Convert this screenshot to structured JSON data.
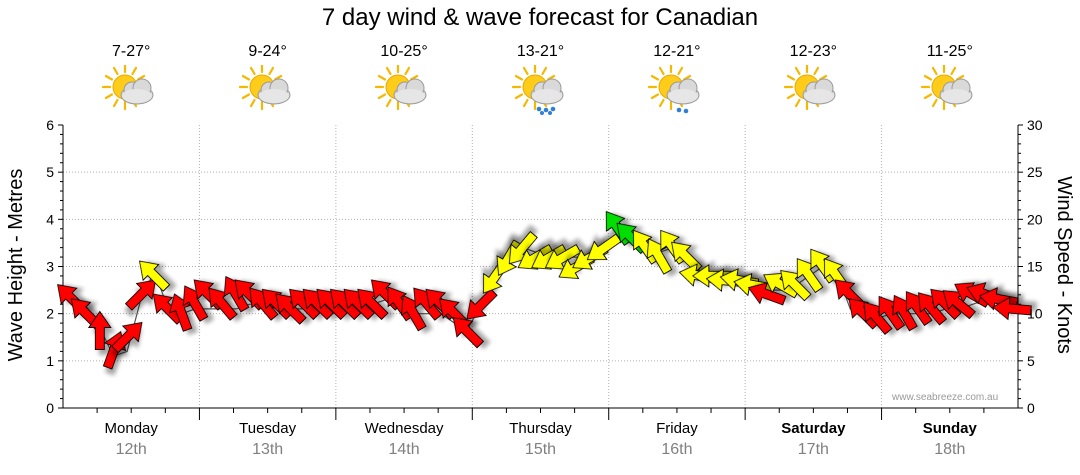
{
  "chart_data": {
    "type": "line",
    "title": "7 day wind & wave forecast for Canadian",
    "ylabel_left": "Wave Height - Metres",
    "ylabel_right": "Wind Speed - Knots",
    "ylim_left": [
      0,
      6
    ],
    "ylim_right": [
      0,
      30
    ],
    "yticks_left": [
      "0",
      "1",
      "2",
      "3",
      "4",
      "5",
      "6"
    ],
    "yticks_right": [
      "0",
      "5",
      "10",
      "15",
      "20",
      "25",
      "30"
    ],
    "grid": true,
    "days": [
      {
        "name": "Monday",
        "date": "12th",
        "temp": "7-27°",
        "icon": "partly-cloudy-icon",
        "bold": false
      },
      {
        "name": "Tuesday",
        "date": "13th",
        "temp": "9-24°",
        "icon": "partly-cloudy-icon",
        "bold": false
      },
      {
        "name": "Wednesday",
        "date": "14th",
        "temp": "10-25°",
        "icon": "partly-cloudy-icon",
        "bold": false
      },
      {
        "name": "Thursday",
        "date": "15th",
        "temp": "13-21°",
        "icon": "showers-icon",
        "bold": false
      },
      {
        "name": "Friday",
        "date": "16th",
        "temp": "12-21°",
        "icon": "light-rain-icon",
        "bold": false
      },
      {
        "name": "Saturday",
        "date": "17th",
        "temp": "12-23°",
        "icon": "partly-cloudy-icon",
        "bold": true
      },
      {
        "name": "Sunday",
        "date": "18th",
        "temp": "11-25°",
        "icon": "partly-cloudy-icon",
        "bold": true
      }
    ],
    "wind_series": {
      "name": "Wind Speed (knots)",
      "arrow_colors": {
        "low": "#ff0000",
        "mid": "#ffff00",
        "high": "#00dd00"
      },
      "x_days": [
        0,
        0.1,
        0.2,
        0.3,
        0.4,
        0.5,
        0.6,
        0.7,
        0.8,
        0.9,
        1,
        1.1,
        1.2,
        1.3,
        1.4,
        1.5,
        1.6,
        1.7,
        1.8,
        1.9,
        2,
        2.1,
        2.2,
        2.3,
        2.4,
        2.5,
        2.6,
        2.7,
        2.8,
        2.9,
        3,
        3.1,
        3.2,
        3.3,
        3.4,
        3.5,
        3.6,
        3.7,
        3.8,
        3.9,
        4,
        4.1,
        4.2,
        4.3,
        4.4,
        4.5,
        4.6,
        4.7,
        4.8,
        4.9,
        5,
        5.1,
        5.2,
        5.3,
        5.4,
        5.5,
        5.6,
        5.7,
        5.8,
        5.9,
        6,
        6.1,
        6.2,
        6.3,
        6.4,
        6.5,
        6.6,
        6.7,
        6.8,
        6.9
      ],
      "values": [
        11.5,
        10,
        8,
        6,
        7.5,
        12,
        14,
        10.5,
        10,
        11,
        12,
        11,
        12,
        12,
        11,
        11,
        10.5,
        11,
        11,
        11,
        11,
        11,
        11,
        12,
        11,
        10,
        11,
        11,
        10,
        8,
        11,
        14,
        16,
        17,
        16,
        16,
        16,
        15,
        16,
        17,
        19,
        18,
        17,
        16,
        17,
        16,
        14,
        14,
        13.5,
        13.5,
        13,
        12,
        13,
        13,
        14,
        15,
        14,
        12,
        10,
        9.5,
        10,
        10,
        10.5,
        10.5,
        11,
        11,
        12,
        12,
        11.5,
        10.5
      ],
      "directions_deg": [
        135,
        135,
        180,
        200,
        225,
        225,
        135,
        135,
        160,
        150,
        135,
        140,
        150,
        135,
        140,
        135,
        135,
        135,
        135,
        135,
        135,
        135,
        135,
        135,
        145,
        150,
        140,
        135,
        135,
        135,
        45,
        35,
        30,
        40,
        60,
        60,
        60,
        60,
        60,
        55,
        145,
        135,
        145,
        150,
        145,
        135,
        100,
        90,
        95,
        100,
        100,
        110,
        120,
        135,
        145,
        145,
        145,
        135,
        135,
        140,
        145,
        150,
        145,
        140,
        135,
        130,
        120,
        110,
        100,
        95
      ]
    },
    "wave_series": {
      "name": "Wave Height (metres)",
      "values": [
        2.3,
        2.0,
        1.7,
        1.1,
        1.2,
        2.3,
        2.9,
        2.1,
        2.0,
        2.1,
        2.1,
        2.1,
        2.1,
        2.2,
        2.2,
        2.1,
        2.1,
        2.1,
        2.1,
        2.1,
        2.1,
        2.1,
        2.2,
        2.3,
        2.2,
        2.0,
        2.0,
        2.0,
        1.8,
        1.7,
        2.2,
        2.7,
        3.2,
        3.4,
        3.3,
        3.2,
        3.2,
        3.2,
        3.2,
        3.4,
        3.7,
        3.6,
        3.5,
        3.3,
        3.4,
        3.3,
        2.9,
        2.8,
        2.8,
        2.7,
        2.6,
        2.5,
        2.5,
        2.6,
        2.8,
        3.0,
        2.9,
        2.1,
        1.9,
        1.9,
        2.0,
        2.0,
        2.0,
        2.0,
        2.1,
        2.1,
        2.2,
        2.3,
        2.2,
        2.1
      ]
    }
  },
  "credit": "www.seabreeze.com.au"
}
